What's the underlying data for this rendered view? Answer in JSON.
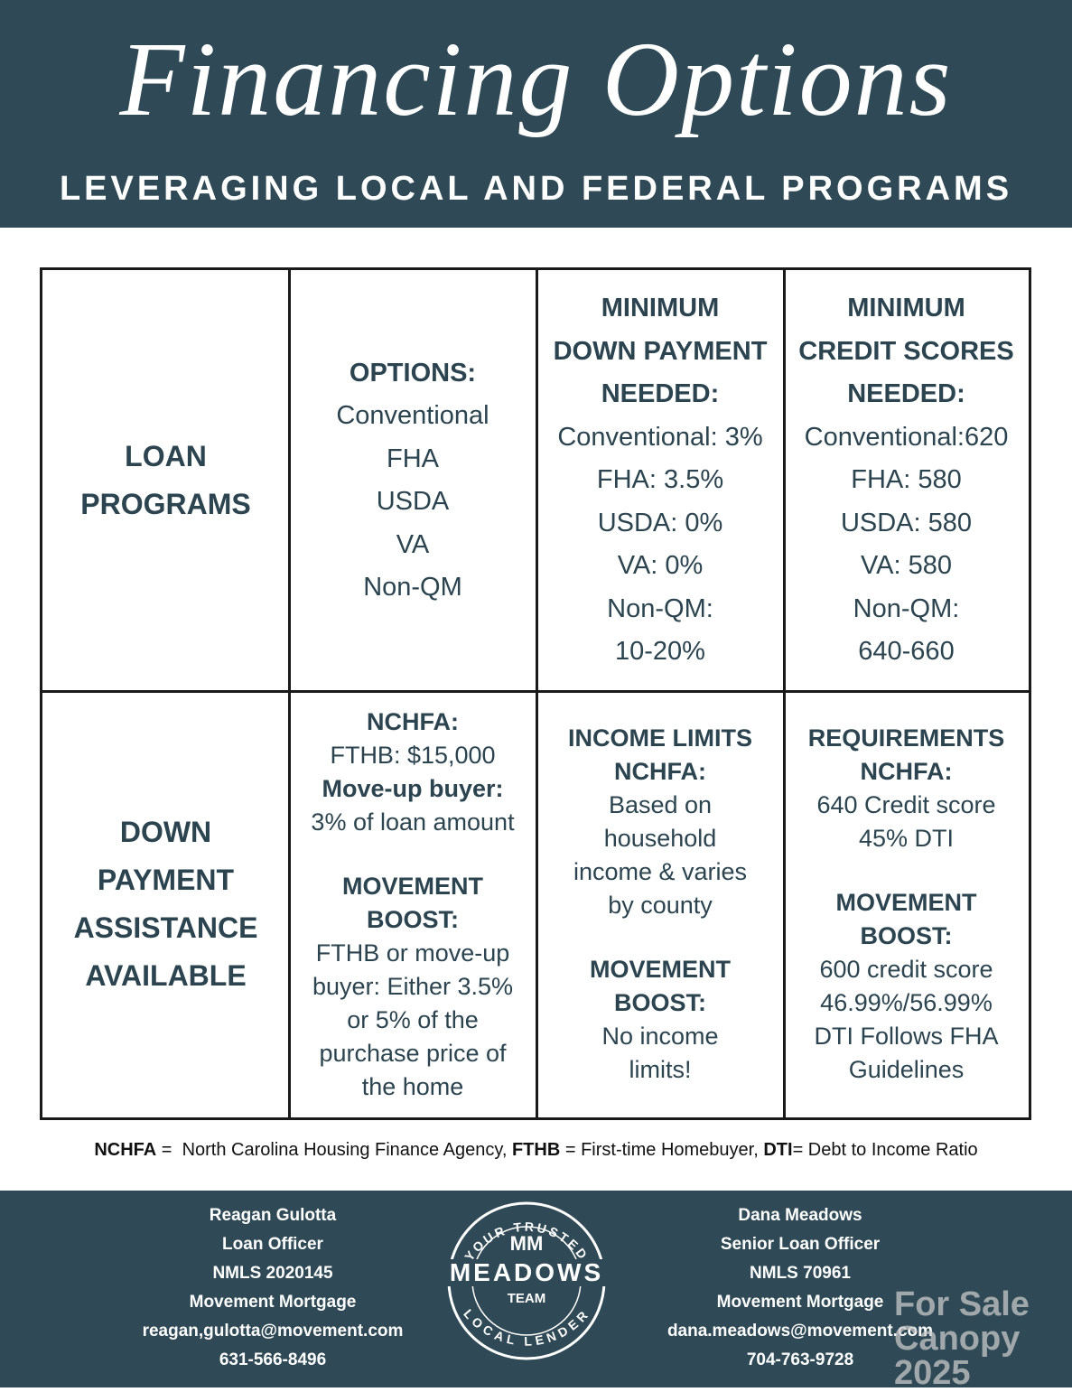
{
  "header": {
    "title": "Financing Options",
    "subtitle": "LEVERAGING LOCAL AND FEDERAL PROGRAMS"
  },
  "table": {
    "rows": [
      [
        {
          "sections": [
            {
              "items": [
                {
                  "text": "LOAN",
                  "bold": true
                },
                {
                  "text": "PROGRAMS",
                  "bold": true
                }
              ]
            }
          ]
        },
        {
          "sections": [
            {
              "items": [
                {
                  "text": "OPTIONS:",
                  "bold": true
                },
                {
                  "text": "Conventional"
                },
                {
                  "text": "FHA"
                },
                {
                  "text": "USDA"
                },
                {
                  "text": "VA"
                },
                {
                  "text": "Non-QM"
                }
              ]
            }
          ]
        },
        {
          "sections": [
            {
              "items": [
                {
                  "text": "MINIMUM",
                  "bold": true
                },
                {
                  "text": "DOWN PAYMENT",
                  "bold": true
                },
                {
                  "text": "NEEDED:",
                  "bold": true
                },
                {
                  "text": "Conventional: 3%"
                },
                {
                  "text": "FHA: 3.5%"
                },
                {
                  "text": "USDA: 0%"
                },
                {
                  "text": "VA: 0%"
                },
                {
                  "text": "Non-QM:"
                },
                {
                  "text": "10-20%"
                }
              ]
            }
          ]
        },
        {
          "sections": [
            {
              "items": [
                {
                  "text": "MINIMUM",
                  "bold": true
                },
                {
                  "text": "CREDIT SCORES",
                  "bold": true
                },
                {
                  "text": "NEEDED:",
                  "bold": true
                },
                {
                  "text": "Conventional:620"
                },
                {
                  "text": "FHA: 580"
                },
                {
                  "text": "USDA: 580"
                },
                {
                  "text": "VA: 580"
                },
                {
                  "text": "Non-QM:"
                },
                {
                  "text": "640-660"
                }
              ]
            }
          ]
        }
      ],
      [
        {
          "sections": [
            {
              "items": [
                {
                  "text": "DOWN",
                  "bold": true
                },
                {
                  "text": "PAYMENT",
                  "bold": true
                },
                {
                  "text": "ASSISTANCE",
                  "bold": true
                },
                {
                  "text": "AVAILABLE",
                  "bold": true
                }
              ]
            }
          ]
        },
        {
          "sections": [
            {
              "items": [
                {
                  "text": "NCHFA:",
                  "bold": true
                },
                {
                  "text": "FTHB: $15,000"
                },
                {
                  "text": "Move-up buyer:",
                  "bold": true
                },
                {
                  "text": "3% of loan amount"
                }
              ]
            },
            {
              "items": [
                {
                  "text": "MOVEMENT",
                  "bold": true
                },
                {
                  "text": "BOOST:",
                  "bold": true
                },
                {
                  "text": "FTHB or move-up"
                },
                {
                  "text": "buyer: Either 3.5%"
                },
                {
                  "text": "or 5% of the"
                },
                {
                  "text": "purchase price of"
                },
                {
                  "text": "the home"
                }
              ]
            }
          ]
        },
        {
          "sections": [
            {
              "items": [
                {
                  "text": "INCOME LIMITS",
                  "bold": true
                },
                {
                  "text": "NCHFA:",
                  "bold": true
                },
                {
                  "text": "Based on"
                },
                {
                  "text": "household"
                },
                {
                  "text": "income & varies"
                },
                {
                  "text": "by county"
                }
              ]
            },
            {
              "items": [
                {
                  "text": "MOVEMENT",
                  "bold": true
                },
                {
                  "text": "BOOST:",
                  "bold": true
                },
                {
                  "text": "No income"
                },
                {
                  "text": "limits!"
                }
              ]
            }
          ]
        },
        {
          "sections": [
            {
              "items": [
                {
                  "text": "REQUIREMENTS",
                  "bold": true
                },
                {
                  "text": "NCHFA:",
                  "bold": true
                },
                {
                  "text": "640 Credit score"
                },
                {
                  "text": "45% DTI"
                }
              ]
            },
            {
              "items": [
                {
                  "text": "MOVEMENT",
                  "bold": true
                },
                {
                  "text": "BOOST:",
                  "bold": true
                },
                {
                  "text": "600 credit score"
                },
                {
                  "text": "46.99%/56.99%"
                },
                {
                  "text": "DTI Follows FHA"
                },
                {
                  "text": "Guidelines"
                }
              ]
            }
          ]
        }
      ]
    ]
  },
  "note": {
    "parts": [
      {
        "text": "NCHFA",
        "bold": true
      },
      {
        "text": " =  North Carolina Housing Finance Agency, "
      },
      {
        "text": "FTHB",
        "bold": true
      },
      {
        "text": " = First-time Homebuyer, "
      },
      {
        "text": "DTI",
        "bold": true
      },
      {
        "text": "= Debt to Income Ratio"
      }
    ]
  },
  "footer": {
    "contacts": [
      {
        "lines": [
          "Reagan Gulotta",
          "Loan Officer",
          "NMLS 2020145",
          "Movement Mortgage",
          "reagan,gulotta@movement.com",
          "631-566-8496"
        ]
      },
      {
        "lines": [
          "Dana Meadows",
          "Senior Loan Officer",
          "NMLS 70961",
          "Movement Mortgage",
          "dana.meadows@movement.com",
          "704-763-9728"
        ]
      }
    ],
    "logo": {
      "top_arc": "YOUR TRUSTED",
      "monogram": "MM",
      "name": "MEADOWS",
      "team": "TEAM",
      "bottom_arc": "LOCAL LENDER"
    }
  },
  "watermark": {
    "lines": [
      "For Sale",
      "Canopy 2025"
    ]
  }
}
